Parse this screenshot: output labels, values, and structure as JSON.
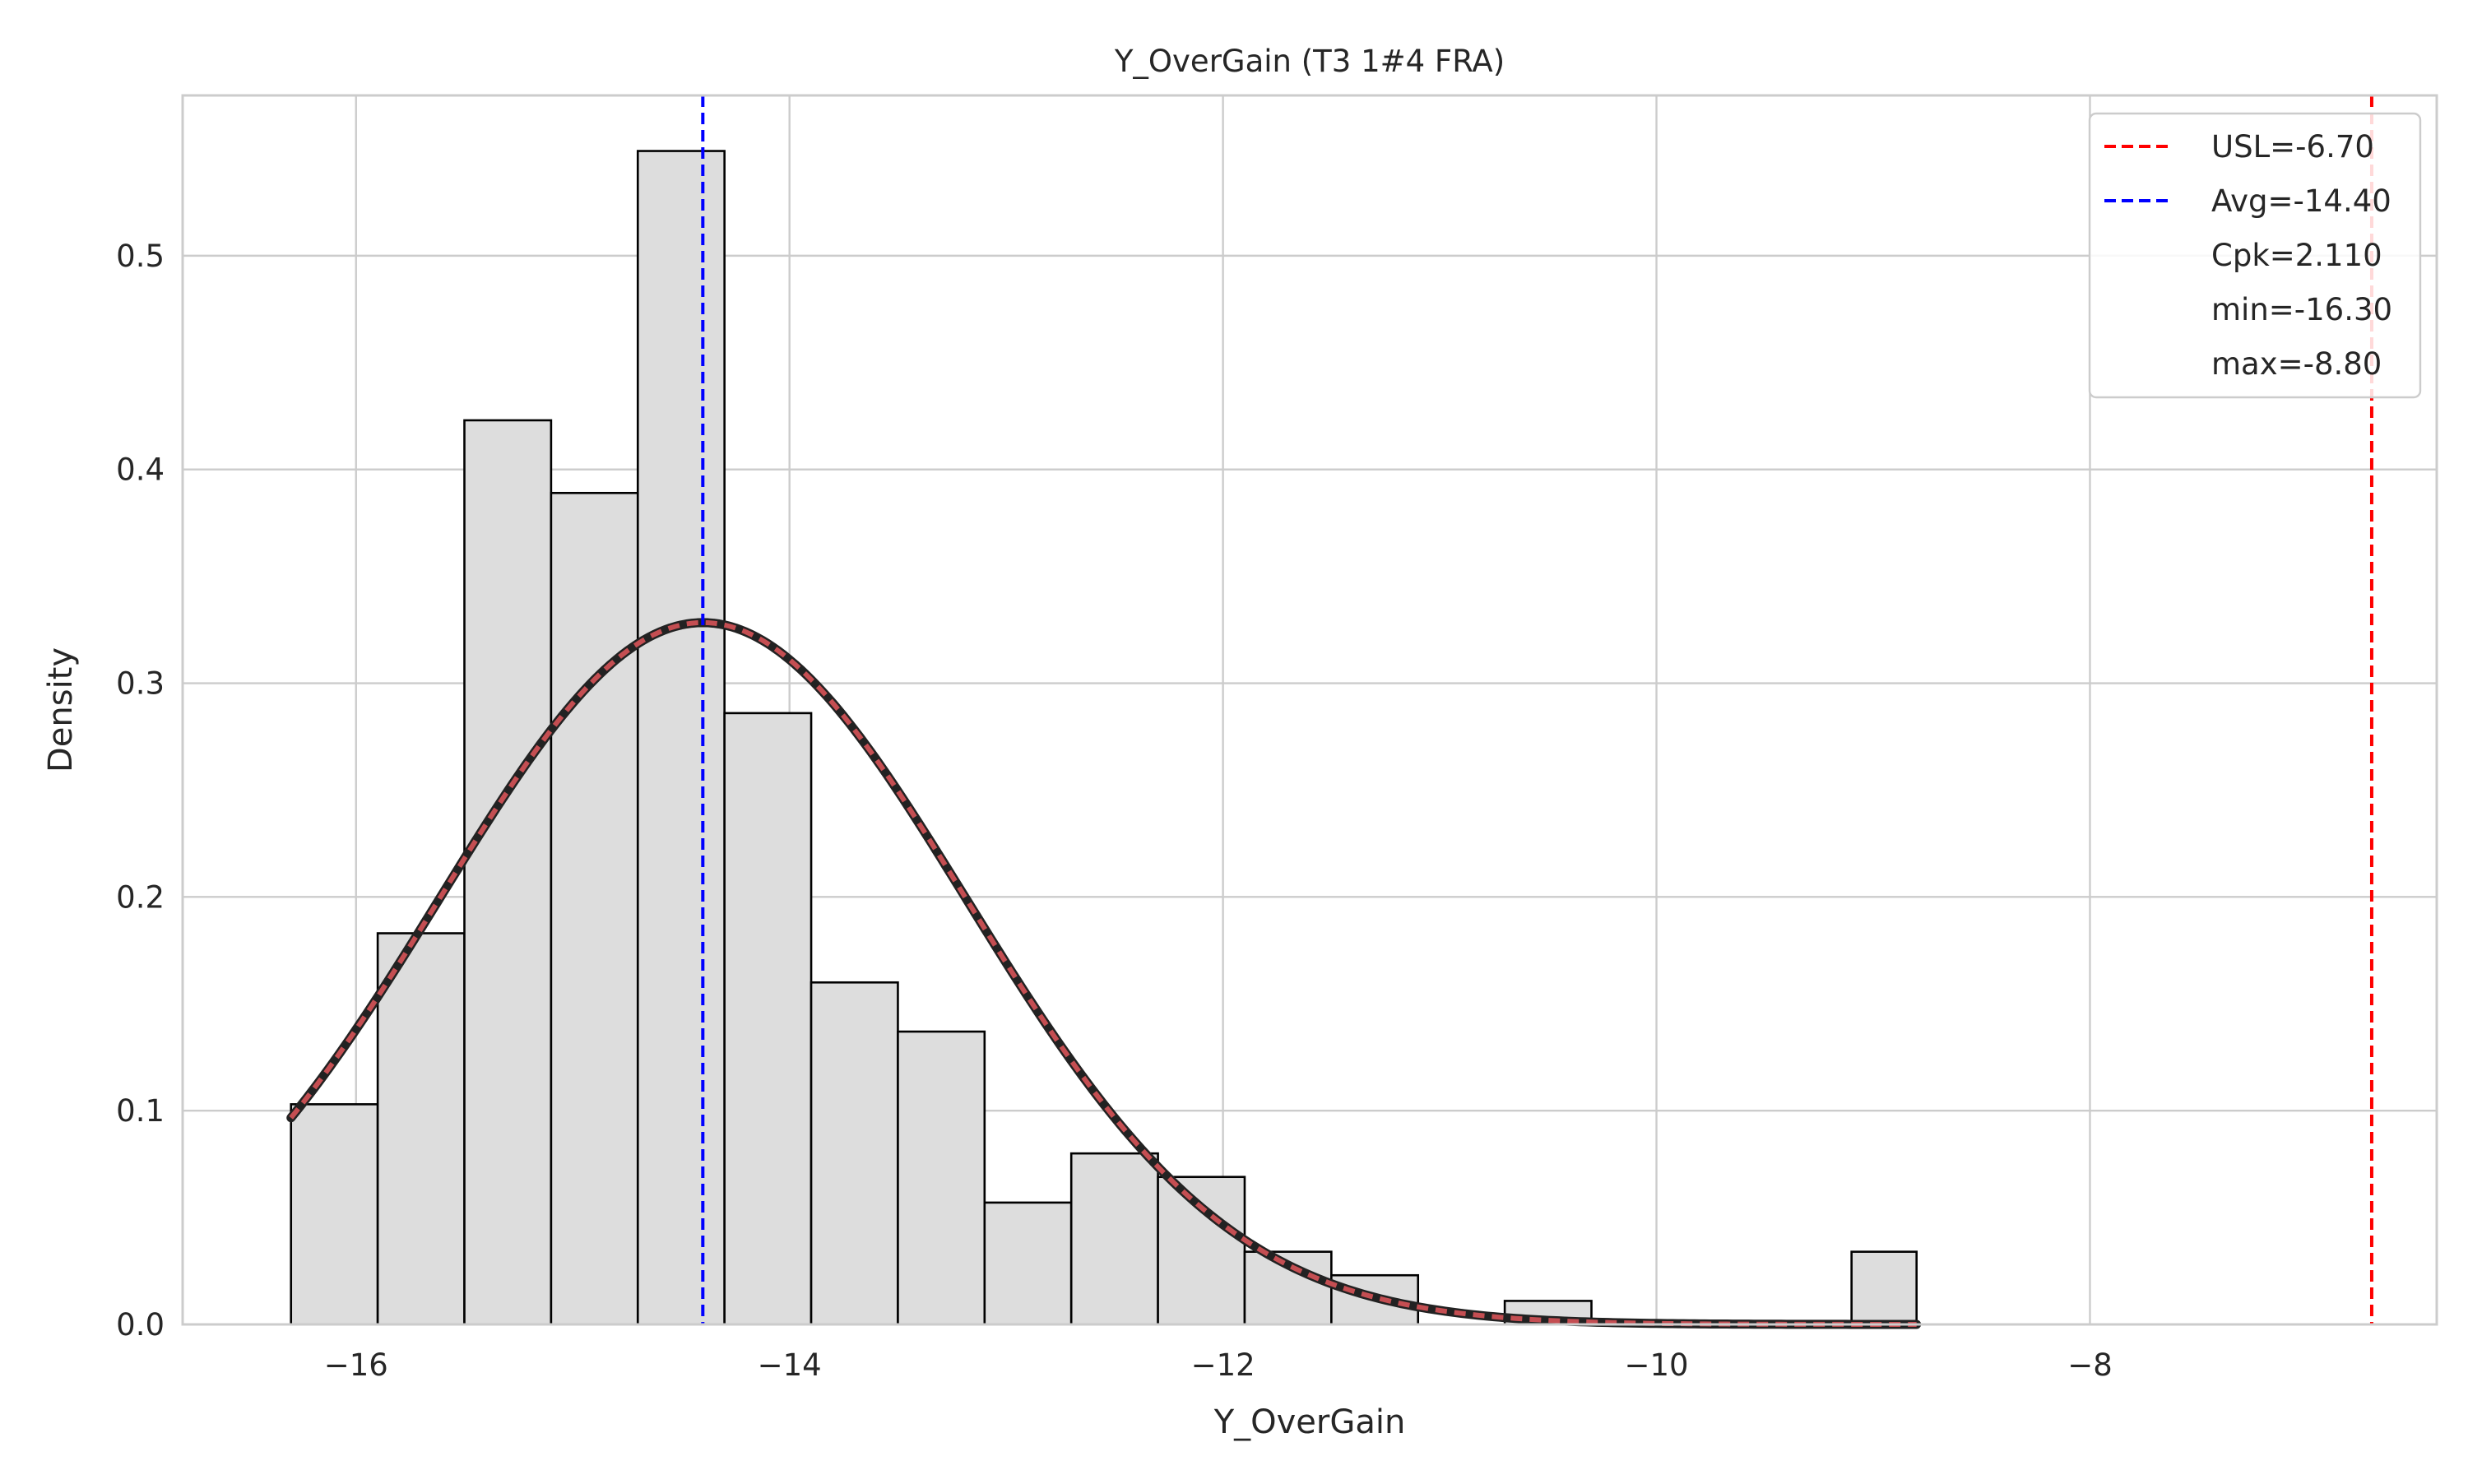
{
  "chart_data": {
    "type": "bar",
    "title": "Y_OverGain (T3 1#4 FRA)",
    "xlabel": "Y_OverGain",
    "ylabel": "Density",
    "xlim": [
      -16.8,
      -6.4
    ],
    "ylim": [
      0,
      0.575
    ],
    "grid": true,
    "legend_position": "top-right",
    "x_ticks": [
      -16,
      -14,
      -12,
      -10,
      -8
    ],
    "x_tick_labels": [
      "−16",
      "−14",
      "−12",
      "−10",
      "−8"
    ],
    "y_ticks": [
      0.0,
      0.1,
      0.2,
      0.3,
      0.4,
      0.5
    ],
    "y_tick_labels": [
      "0.0",
      "0.1",
      "0.2",
      "0.3",
      "0.4",
      "0.5"
    ],
    "bins": [
      {
        "x0": -16.3,
        "x1": -15.9,
        "density": 0.103
      },
      {
        "x0": -15.9,
        "x1": -15.5,
        "density": 0.183
      },
      {
        "x0": -15.5,
        "x1": -15.1,
        "density": 0.423
      },
      {
        "x0": -15.1,
        "x1": -14.7,
        "density": 0.389
      },
      {
        "x0": -14.7,
        "x1": -14.3,
        "density": 0.549
      },
      {
        "x0": -14.3,
        "x1": -13.9,
        "density": 0.286
      },
      {
        "x0": -13.9,
        "x1": -13.5,
        "density": 0.16
      },
      {
        "x0": -13.5,
        "x1": -13.1,
        "density": 0.137
      },
      {
        "x0": -13.1,
        "x1": -12.7,
        "density": 0.057
      },
      {
        "x0": -12.7,
        "x1": -12.3,
        "density": 0.08
      },
      {
        "x0": -12.3,
        "x1": -11.9,
        "density": 0.069
      },
      {
        "x0": -11.9,
        "x1": -11.5,
        "density": 0.034
      },
      {
        "x0": -11.5,
        "x1": -11.1,
        "density": 0.023
      },
      {
        "x0": -11.1,
        "x1": -10.7,
        "density": 0.0
      },
      {
        "x0": -10.7,
        "x1": -10.3,
        "density": 0.011
      },
      {
        "x0": -10.3,
        "x1": -9.9,
        "density": 0.0
      },
      {
        "x0": -9.9,
        "x1": -9.5,
        "density": 0.0
      },
      {
        "x0": -9.5,
        "x1": -9.1,
        "density": 0.0
      },
      {
        "x0": -9.1,
        "x1": -8.8,
        "density": 0.034
      }
    ],
    "normal_curve": {
      "mean": -14.4,
      "sigma": 1.215,
      "x_start": -16.3,
      "x_end": -8.8
    },
    "reference_lines": [
      {
        "label": "USL=-6.70",
        "x": -6.7,
        "color": "#ff0000",
        "style": "dashed"
      },
      {
        "label": "Avg=-14.40",
        "x": -14.4,
        "color": "#0000ff",
        "style": "dashed"
      }
    ],
    "legend": {
      "entries": [
        {
          "label": "USL=-6.70",
          "color": "#ff0000",
          "marker": "dashed-line"
        },
        {
          "label": "Avg=-14.40",
          "color": "#0000ff",
          "marker": "dashed-line"
        },
        {
          "label": "Cpk=2.110",
          "color": "",
          "marker": "none"
        },
        {
          "label": "min=-16.30",
          "color": "",
          "marker": "none"
        },
        {
          "label": "max=-8.80",
          "color": "",
          "marker": "none"
        }
      ]
    },
    "colors": {
      "bar_fill": "#dddddd",
      "bar_edge": "#000000",
      "curve_outer": "#222222",
      "curve_inner": "#c44e52",
      "grid": "#cccccc",
      "frame": "#cccccc"
    }
  }
}
